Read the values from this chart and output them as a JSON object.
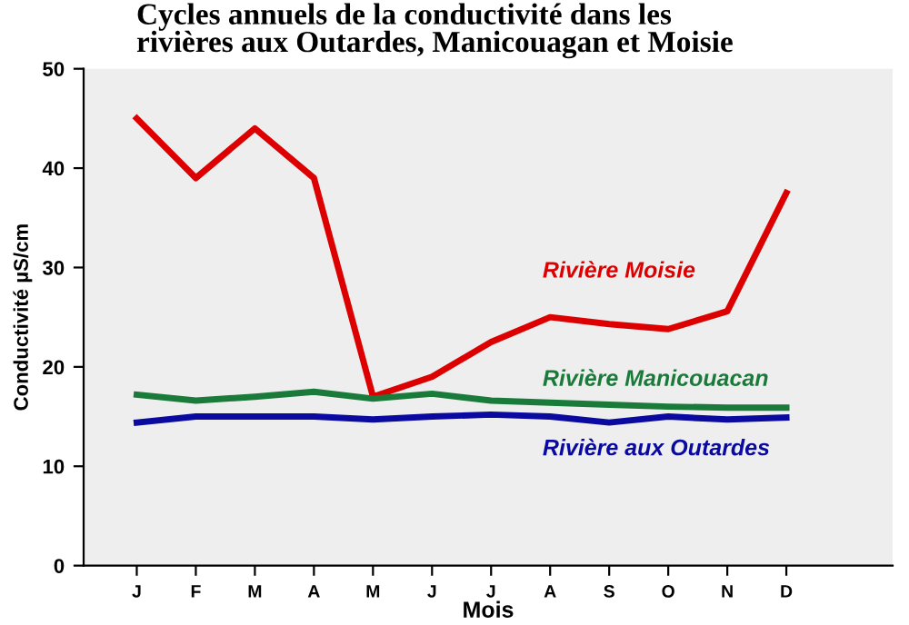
{
  "chart_data": {
    "type": "line",
    "title": "Cycles annuels de la conductivité dans les\nrivières aux Outardes, Manicouagan et Moisie",
    "xlabel": "Mois",
    "ylabel": "Conductivité µS/cm",
    "categories": [
      "J",
      "F",
      "M",
      "A",
      "M",
      "J",
      "J",
      "A",
      "S",
      "O",
      "N",
      "D"
    ],
    "series": [
      {
        "name": "Rivière Moisie",
        "color": "#dd0000",
        "values": [
          45,
          39,
          44,
          39,
          17,
          19,
          22.5,
          25,
          24.3,
          23.8,
          25.6,
          37.5
        ]
      },
      {
        "name": "Rivière Manicouacan",
        "color": "#1a7a3a",
        "values": [
          17.2,
          16.6,
          17.0,
          17.5,
          16.8,
          17.3,
          16.6,
          16.4,
          16.2,
          16.0,
          15.9,
          15.9
        ]
      },
      {
        "name": "Rivière aux Outardes",
        "color": "#0a0aa0",
        "values": [
          14.4,
          15.0,
          15.0,
          15.0,
          14.7,
          15.0,
          15.2,
          15.0,
          14.4,
          15.0,
          14.7,
          14.9
        ]
      }
    ],
    "ylim": [
      0,
      50
    ],
    "yticks": [
      0,
      10,
      20,
      30,
      40,
      50
    ],
    "grid": false,
    "legend": false,
    "marker": "none",
    "line_style": "solid"
  }
}
